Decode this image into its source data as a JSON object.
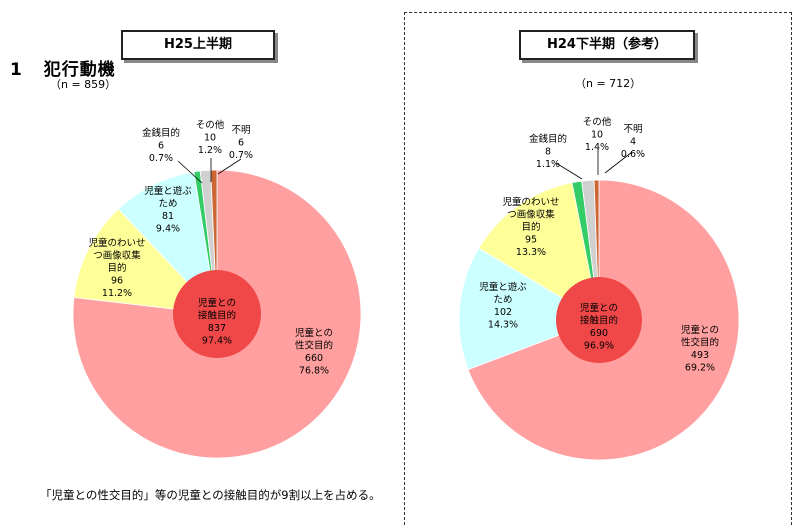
{
  "section": {
    "number": "1",
    "title": "犯行動機",
    "n_label": "（n = 859）"
  },
  "note": "「児童との性交目的」等の児童との接触目的が9割以上を占める。",
  "chart_data": [
    {
      "type": "pie",
      "title": "H25上半期",
      "n_label": "（n = 859）",
      "inner": {
        "lines": [
          "児童との",
          "接触目的",
          "837",
          "97.4%"
        ],
        "value": 837,
        "percent": 97.4,
        "color": "#f04848"
      },
      "slices": [
        {
          "lines": [
            "児童との",
            "性交目的",
            "660",
            "76.8%"
          ],
          "value": 660,
          "percent": 76.8,
          "color": "#ff9f9f"
        },
        {
          "lines": [
            "児童のわいせ",
            "つ画像収集",
            "目的",
            "96",
            "11.2%"
          ],
          "value": 96,
          "percent": 11.2,
          "color": "#ffff99"
        },
        {
          "lines": [
            "児童と遊ぶ",
            "ため",
            "81",
            "9.4%"
          ],
          "value": 81,
          "percent": 9.4,
          "color": "#ccffff"
        },
        {
          "lines": [
            "金銭目的",
            "6",
            "0.7%"
          ],
          "value": 6,
          "percent": 0.7,
          "color": "#33cc66"
        },
        {
          "lines": [
            "その他",
            "10",
            "1.2%"
          ],
          "value": 10,
          "percent": 1.2,
          "color": "#d0d0d0"
        },
        {
          "lines": [
            "不明",
            "6",
            "0.7%"
          ],
          "value": 6,
          "percent": 0.7,
          "color": "#cc6633"
        }
      ]
    },
    {
      "type": "pie",
      "title": "H24下半期（参考）",
      "n_label": "（n = 712）",
      "inner": {
        "lines": [
          "児童との",
          "接触目的",
          "690",
          "96.9%"
        ],
        "value": 690,
        "percent": 96.9,
        "color": "#f04848"
      },
      "slices": [
        {
          "lines": [
            "児童との",
            "性交目的",
            "493",
            "69.2%"
          ],
          "value": 493,
          "percent": 69.2,
          "color": "#ff9f9f"
        },
        {
          "lines": [
            "児童と遊ぶ",
            "ため",
            "102",
            "14.3%"
          ],
          "value": 102,
          "percent": 14.3,
          "color": "#ccffff"
        },
        {
          "lines": [
            "児童のわいせ",
            "つ画像収集",
            "目的",
            "95",
            "13.3%"
          ],
          "value": 95,
          "percent": 13.3,
          "color": "#ffff99"
        },
        {
          "lines": [
            "金銭目的",
            "8",
            "1.1%"
          ],
          "value": 8,
          "percent": 1.1,
          "color": "#33cc66"
        },
        {
          "lines": [
            "その他",
            "10",
            "1.4%"
          ],
          "value": 10,
          "percent": 1.4,
          "color": "#d0d0d0"
        },
        {
          "lines": [
            "不明",
            "4",
            "0.6%"
          ],
          "value": 4,
          "percent": 0.6,
          "color": "#cc6633"
        }
      ]
    }
  ]
}
